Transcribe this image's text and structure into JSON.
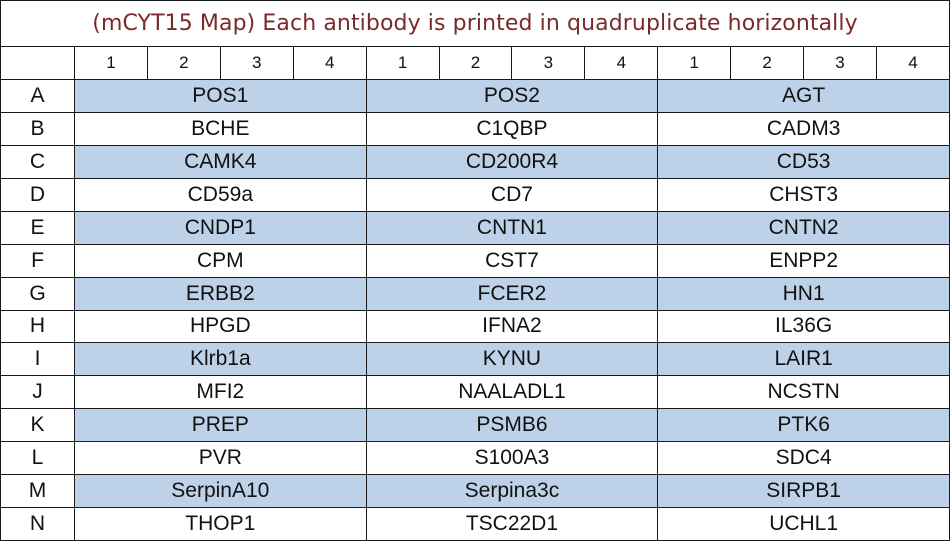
{
  "title": "(mCYT15 Map) Each antibody is printed in quadruplicate horizontally",
  "replicate_headers": [
    "1",
    "2",
    "3",
    "4",
    "1",
    "2",
    "3",
    "4",
    "1",
    "2",
    "3",
    "4"
  ],
  "shade_color": "#bdd2e8",
  "rows": [
    {
      "label": "A",
      "shaded": true,
      "antibodies": [
        "POS1",
        "POS2",
        "AGT"
      ]
    },
    {
      "label": "B",
      "shaded": false,
      "antibodies": [
        "BCHE",
        "C1QBP",
        "CADM3"
      ]
    },
    {
      "label": "C",
      "shaded": true,
      "antibodies": [
        "CAMK4",
        "CD200R4",
        "CD53"
      ]
    },
    {
      "label": "D",
      "shaded": false,
      "antibodies": [
        "CD59a",
        "CD7",
        "CHST3"
      ]
    },
    {
      "label": "E",
      "shaded": true,
      "antibodies": [
        "CNDP1",
        "CNTN1",
        "CNTN2"
      ]
    },
    {
      "label": "F",
      "shaded": false,
      "antibodies": [
        "CPM",
        "CST7",
        "ENPP2"
      ]
    },
    {
      "label": "G",
      "shaded": true,
      "antibodies": [
        "ERBB2",
        "FCER2",
        "HN1"
      ]
    },
    {
      "label": "H",
      "shaded": false,
      "antibodies": [
        "HPGD",
        "IFNA2",
        "IL36G"
      ]
    },
    {
      "label": "I",
      "shaded": true,
      "antibodies": [
        "Klrb1a",
        "KYNU",
        "LAIR1"
      ]
    },
    {
      "label": "J",
      "shaded": false,
      "antibodies": [
        "MFI2",
        "NAALADL1",
        "NCSTN"
      ]
    },
    {
      "label": "K",
      "shaded": true,
      "antibodies": [
        "PREP",
        "PSMB6",
        "PTK6"
      ]
    },
    {
      "label": "L",
      "shaded": false,
      "antibodies": [
        "PVR",
        "S100A3",
        "SDC4"
      ]
    },
    {
      "label": "M",
      "shaded": true,
      "antibodies": [
        "SerpinA10",
        "Serpina3c",
        "SIRPB1"
      ]
    },
    {
      "label": "N",
      "shaded": false,
      "antibodies": [
        "THOP1",
        "TSC22D1",
        "UCHL1"
      ]
    }
  ]
}
